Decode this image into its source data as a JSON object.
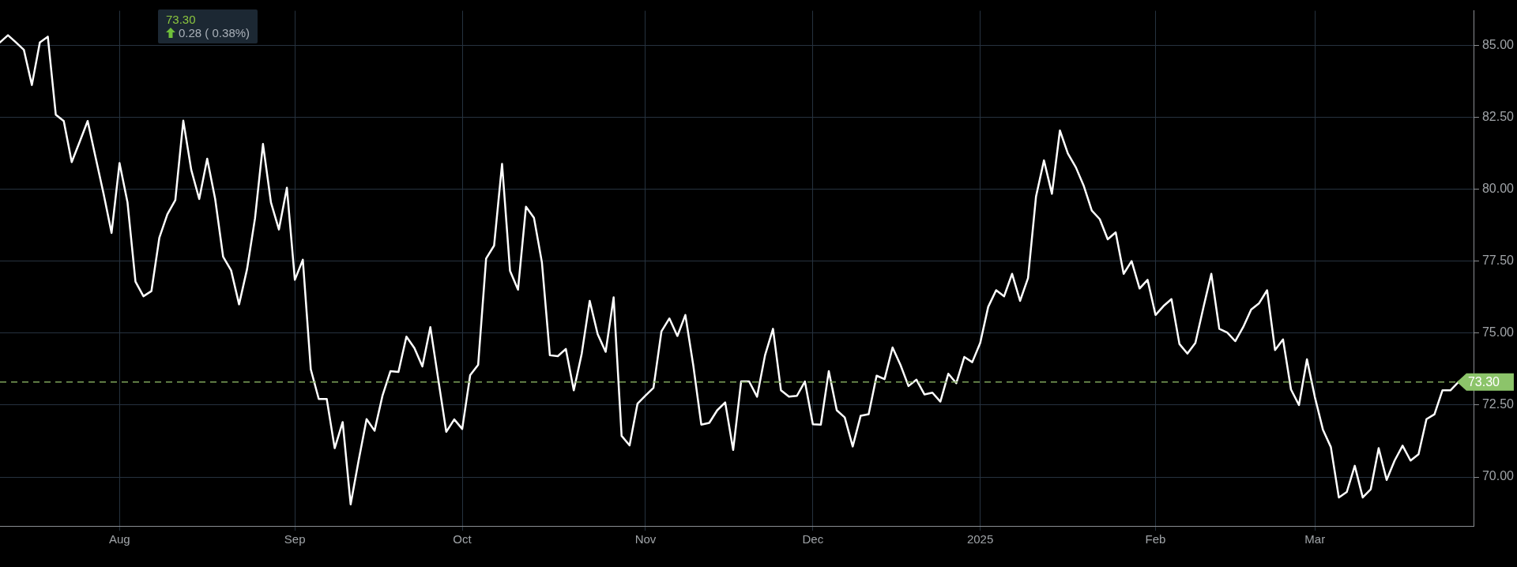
{
  "chart_data": {
    "type": "line",
    "categories": [
      null,
      null,
      null,
      null,
      null,
      null,
      null,
      null,
      null,
      null,
      null,
      null,
      null,
      null,
      null,
      "Aug",
      null,
      null,
      null,
      null,
      null,
      null,
      null,
      null,
      null,
      null,
      null,
      null,
      null,
      null,
      null,
      null,
      null,
      null,
      null,
      null,
      null,
      "Sep",
      null,
      null,
      null,
      null,
      null,
      null,
      null,
      null,
      null,
      null,
      null,
      null,
      null,
      null,
      null,
      null,
      null,
      null,
      null,
      null,
      "Oct",
      null,
      null,
      null,
      null,
      null,
      null,
      null,
      null,
      null,
      null,
      null,
      null,
      null,
      null,
      null,
      null,
      null,
      null,
      null,
      null,
      null,
      null,
      "Nov",
      null,
      null,
      null,
      null,
      null,
      null,
      null,
      null,
      null,
      null,
      null,
      null,
      null,
      null,
      null,
      null,
      null,
      null,
      null,
      null,
      "Dec",
      null,
      null,
      null,
      null,
      null,
      null,
      null,
      null,
      null,
      null,
      null,
      null,
      null,
      null,
      null,
      null,
      null,
      null,
      null,
      null,
      "2025",
      null,
      null,
      null,
      null,
      null,
      null,
      null,
      null,
      null,
      null,
      null,
      null,
      null,
      null,
      null,
      null,
      null,
      null,
      null,
      null,
      null,
      "Feb",
      null,
      null,
      null,
      null,
      null,
      null,
      null,
      null,
      null,
      null,
      null,
      null,
      null,
      null,
      null,
      null,
      null,
      null,
      null,
      "Mar",
      null,
      null,
      null,
      null,
      null,
      null,
      null,
      null,
      null,
      null,
      null,
      null,
      null,
      null,
      null,
      null,
      null,
      null,
      null,
      null
    ],
    "series": [
      {
        "color": "#ffffff",
        "values": [
          85.1,
          85.35,
          85.1,
          84.84,
          83.62,
          85.1,
          85.3,
          82.59,
          82.37,
          80.94,
          81.65,
          82.37,
          81.1,
          79.84,
          78.48,
          80.91,
          79.54,
          76.79,
          76.28,
          76.46,
          78.32,
          79.13,
          79.62,
          82.38,
          80.67,
          79.66,
          81.06,
          79.66,
          77.65,
          77.18,
          76.0,
          77.22,
          78.99,
          81.57,
          79.54,
          78.6,
          80.05,
          76.85,
          77.55,
          73.74,
          72.71,
          72.71,
          71.0,
          71.91,
          69.05,
          70.57,
          72.01,
          71.61,
          72.83,
          73.68,
          73.65,
          74.88,
          74.48,
          73.84,
          75.21,
          73.38,
          71.57,
          72.0,
          71.67,
          73.54,
          73.9,
          77.59,
          78.04,
          80.88,
          77.16,
          76.51,
          79.39,
          79.01,
          77.46,
          74.23,
          74.2,
          74.45,
          73.01,
          74.29,
          76.12,
          74.96,
          74.35,
          76.24,
          71.43,
          71.1,
          72.55,
          72.83,
          73.1,
          75.06,
          75.51,
          74.9,
          75.63,
          73.87,
          71.82,
          71.88,
          72.32,
          72.59,
          70.94,
          73.32,
          73.32,
          72.79,
          74.23,
          75.15,
          73.01,
          72.79,
          72.82,
          73.32,
          71.83,
          71.82,
          73.68,
          72.32,
          72.07,
          71.06,
          72.13,
          72.18,
          73.52,
          73.4,
          74.5,
          73.89,
          73.16,
          73.38,
          72.87,
          72.93,
          72.62,
          73.59,
          73.26,
          74.17,
          73.99,
          74.66,
          75.91,
          76.49,
          76.28,
          77.06,
          76.12,
          76.91,
          79.74,
          81.0,
          79.84,
          82.04,
          81.24,
          80.76,
          80.11,
          79.26,
          78.96,
          78.26,
          78.5,
          77.06,
          77.5,
          76.55,
          76.85,
          75.63,
          75.94,
          76.18,
          74.62,
          74.29,
          74.66,
          75.88,
          77.06,
          75.15,
          75.02,
          74.72,
          75.21,
          75.82,
          76.04,
          76.49,
          74.41,
          74.78,
          73.04,
          72.5,
          74.09,
          72.77,
          71.65,
          71.04,
          69.29,
          69.48,
          70.39,
          69.29,
          69.57,
          71.0,
          69.9,
          70.57,
          71.09,
          70.57,
          70.79,
          72.01,
          72.18,
          73.01,
          73.01,
          73.3,
          null,
          null
        ]
      }
    ],
    "ylim": [
      68.3,
      86.2
    ],
    "yticks": [
      {
        "value": 70,
        "label": "70.00"
      },
      {
        "value": 72.5,
        "label": "72.50"
      },
      {
        "value": 75,
        "label": "75.00"
      },
      {
        "value": 77.5,
        "label": "77.50"
      },
      {
        "value": 80,
        "label": "80.00"
      },
      {
        "value": 82.5,
        "label": "82.50"
      },
      {
        "value": 85,
        "label": "85.00"
      }
    ],
    "grid": true,
    "legend": false,
    "marker": "none",
    "line_style": "solid",
    "ref_lines": [
      {
        "axis": "y",
        "value": 73.3,
        "label": "73.30",
        "color": "#7ea35a",
        "line_style": "dashed"
      }
    ],
    "annotations": [
      "73.30",
      "0.28 ( 0.38%)"
    ]
  }
}
